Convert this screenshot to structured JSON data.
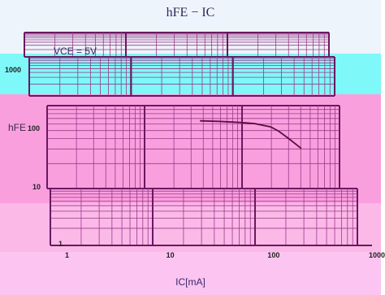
{
  "chart_data": {
    "type": "line",
    "title": "hFE − IC",
    "condition": "VCE = 5V",
    "xlabel": "IC[mA]",
    "ylabel": "hFE",
    "xscale": "log",
    "yscale": "log",
    "xlim": [
      1,
      1000
    ],
    "ylim": [
      1,
      1000
    ],
    "x_ticks": [
      "1",
      "10",
      "100",
      "1000"
    ],
    "y_ticks": [
      "1",
      "10",
      "100",
      "1000"
    ],
    "grid": true,
    "series": [
      {
        "x": [
          20,
          30,
          50,
          70,
          100,
          120,
          150,
          200
        ],
        "y": [
          100,
          98,
          94,
          90,
          80,
          68,
          52,
          36
        ]
      }
    ]
  },
  "colors": {
    "top_band": "#eef4fb",
    "cyan_band": "#7ef8f8",
    "pink_band": "#fa9fde",
    "lower_band": "#fbb9e8",
    "bottom_band": "#fcc4f0",
    "grid_dark": "#6a1860",
    "grid_light": "#9a3a8a",
    "curve": "#5a1040"
  }
}
